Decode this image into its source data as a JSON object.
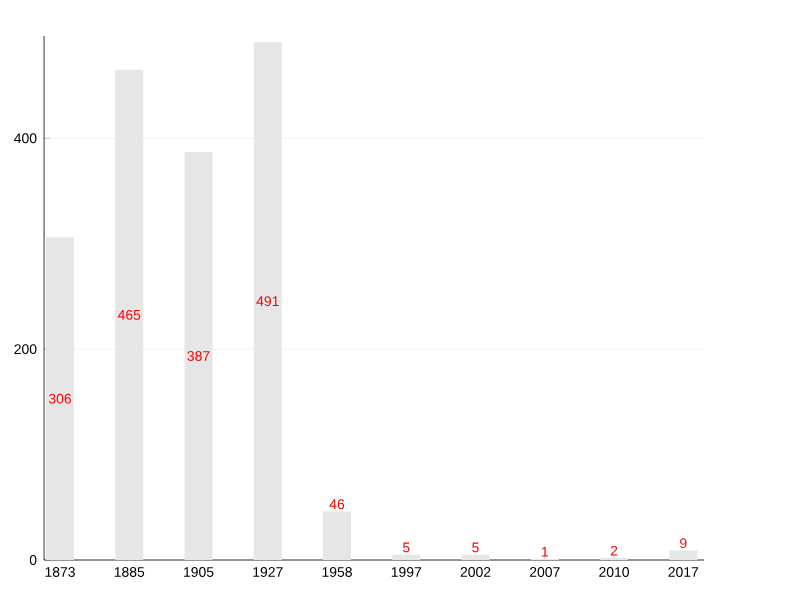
{
  "chart_data": {
    "type": "bar",
    "categories": [
      "1873",
      "1885",
      "1905",
      "1927",
      "1958",
      "1997",
      "2002",
      "2007",
      "2010",
      "2017"
    ],
    "values": [
      306,
      465,
      387,
      491,
      46,
      5,
      5,
      1,
      2,
      9
    ],
    "color": "#e6e6e6",
    "ylim": [
      0,
      497
    ],
    "yticks": [
      0,
      200,
      400
    ],
    "grid": "y",
    "data_labels": true
  }
}
